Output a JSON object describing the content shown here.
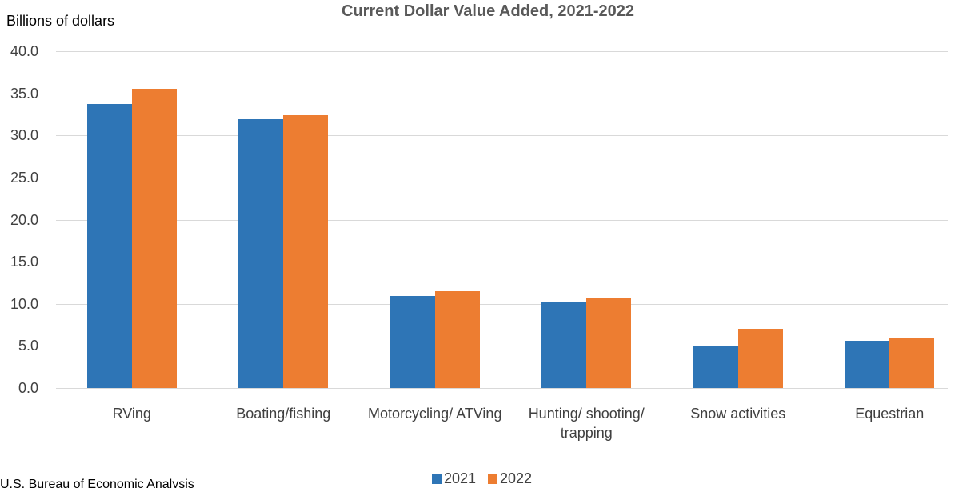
{
  "chart_data": {
    "type": "bar",
    "title": "Current Dollar Value Added, 2021-2022",
    "y_axis_label": "Billions of dollars",
    "source": "U.S. Bureau of Economic Analysis",
    "categories": [
      "RVing",
      "Boating/fishing",
      "Motorcycling/ ATVing",
      "Hunting/ shooting/ trapping",
      "Snow activities",
      "Equestrian"
    ],
    "series": [
      {
        "name": "2021",
        "color": "#2e75b6",
        "values": [
          33.7,
          31.9,
          10.9,
          10.3,
          5.0,
          5.6
        ]
      },
      {
        "name": "2022",
        "color": "#ed7d31",
        "values": [
          35.5,
          32.4,
          11.5,
          10.7,
          7.0,
          5.9
        ]
      }
    ],
    "ylim": [
      0,
      40
    ],
    "yticks": [
      {
        "value": 0,
        "label": "0.0"
      },
      {
        "value": 5,
        "label": "5.0"
      },
      {
        "value": 10,
        "label": "10.0"
      },
      {
        "value": 15,
        "label": "15.0"
      },
      {
        "value": 20,
        "label": "20.0"
      },
      {
        "value": 25,
        "label": "25.0"
      },
      {
        "value": 30,
        "label": "30.0"
      },
      {
        "value": 35,
        "label": "35.0"
      },
      {
        "value": 40,
        "label": "40.0"
      }
    ],
    "grid": true,
    "legend": "bottom"
  }
}
